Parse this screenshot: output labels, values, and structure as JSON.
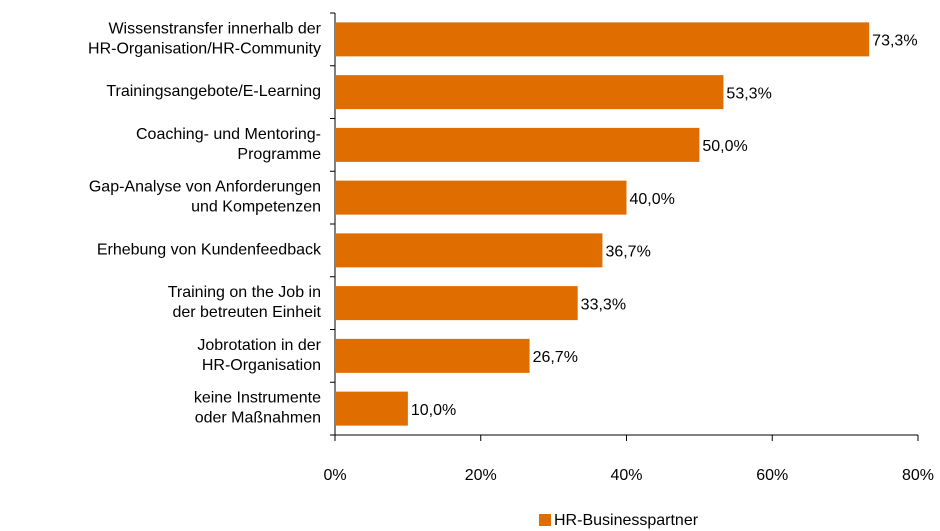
{
  "chart_data": {
    "type": "bar",
    "orientation": "horizontal",
    "categories": [
      "Wissenstransfer innerhalb der\nHR-Organisation/HR-Community",
      "Trainingsangebote/E-Learning",
      "Coaching- und Mentoring-\nProgramme",
      "Gap-Analyse von Anforderungen\nund Kompetenzen",
      "Erhebung von Kundenfeedback",
      "Training on the Job in\nder betreuten Einheit",
      "Jobrotation in der\nHR-Organisation",
      "keine Instrumente\noder Maßnahmen"
    ],
    "series": [
      {
        "name": "HR-Businesspartner",
        "color": "#df6d00",
        "values": [
          73.3,
          53.3,
          50.0,
          40.0,
          36.7,
          33.3,
          26.7,
          10.0
        ],
        "value_labels": [
          "73,3%",
          "53,3%",
          "50,0%",
          "40,0%",
          "36,7%",
          "33,3%",
          "26,7%",
          "10,0%"
        ]
      }
    ],
    "xlim": [
      0,
      80
    ],
    "xticks": [
      {
        "value": 0,
        "label": "0%"
      },
      {
        "value": 20,
        "label": "20%"
      },
      {
        "value": 40,
        "label": "40%"
      },
      {
        "value": 60,
        "label": "60%"
      },
      {
        "value": 80,
        "label": "80%"
      }
    ],
    "legend": "bottom"
  }
}
